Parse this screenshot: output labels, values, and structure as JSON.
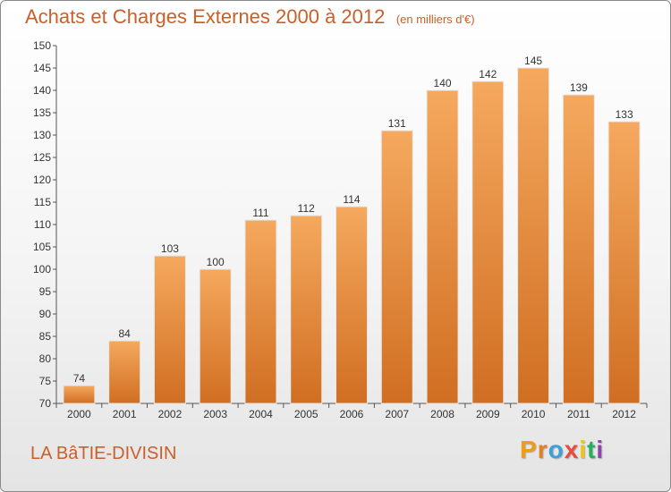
{
  "header": {
    "title": "Achats et Charges Externes 2000 à 2012",
    "subtitle": "(en milliers d'€)"
  },
  "commune": "LA BâTIE-DIVISIN",
  "brand": {
    "text": "Proxiti",
    "letter_colors": [
      "#f39c12",
      "#e67e22",
      "#3ba0d8",
      "#e74c3c",
      "#f1c40f",
      "#27ae60",
      "#8e44ad"
    ]
  },
  "colors": {
    "accent": "#c8602a",
    "bar_top": "#f5a95e",
    "bar_bottom": "#d06e22"
  },
  "chart_data": {
    "type": "bar",
    "categories": [
      "2000",
      "2001",
      "2002",
      "2003",
      "2004",
      "2005",
      "2006",
      "2007",
      "2008",
      "2009",
      "2010",
      "2011",
      "2012"
    ],
    "values": [
      74,
      84,
      103,
      100,
      111,
      112,
      114,
      131,
      140,
      142,
      145,
      139,
      133
    ],
    "ylim": [
      70,
      150
    ],
    "yticks": [
      70,
      75,
      80,
      85,
      90,
      95,
      100,
      105,
      110,
      115,
      120,
      125,
      130,
      135,
      140,
      145,
      150
    ],
    "grid": false,
    "title": "Achats et Charges Externes 2000 à 2012",
    "subtitle": "(en milliers d'€)"
  }
}
